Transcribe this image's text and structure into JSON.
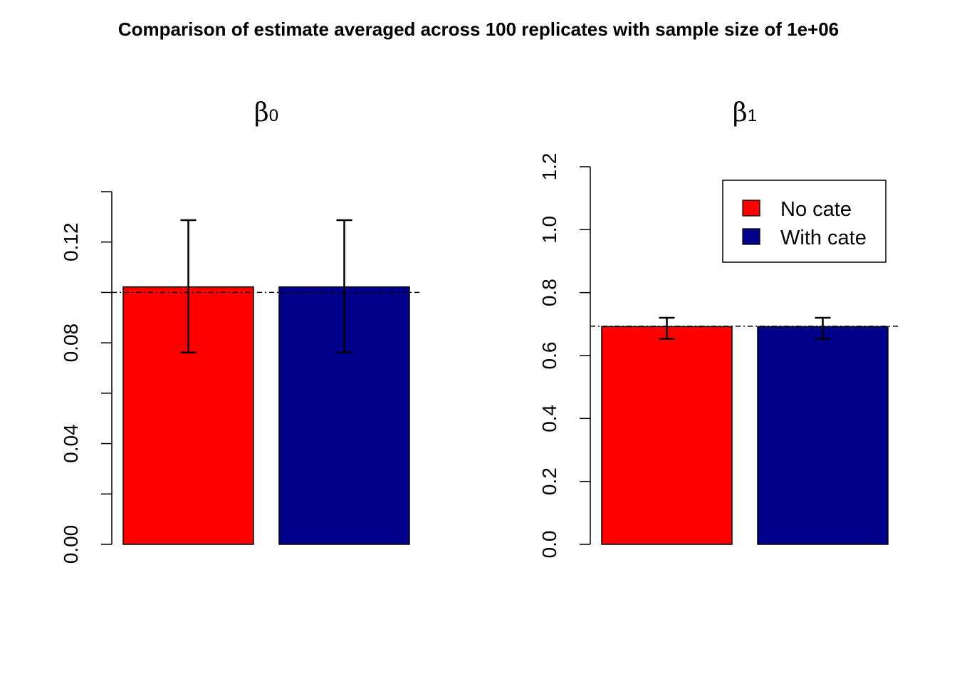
{
  "chart_data": [
    {
      "type": "bar",
      "title": "β",
      "title_subscript": "0",
      "categories": [
        "No cate",
        "With cate"
      ],
      "values": [
        0.1022,
        0.1022
      ],
      "error_low": [
        0.0761,
        0.0761
      ],
      "error_high": [
        0.1287,
        0.1287
      ],
      "reference_line": 0.1,
      "ylim": [
        0,
        0.14
      ],
      "yticks": [
        0.0,
        0.02,
        0.04,
        0.06,
        0.08,
        0.1,
        0.12,
        0.14
      ],
      "ytick_labels": [
        "0.00",
        "",
        "0.04",
        "",
        "0.08",
        "",
        "0.12",
        ""
      ],
      "colors": [
        "#FF0000",
        "#00008B"
      ]
    },
    {
      "type": "bar",
      "title": "β",
      "title_subscript": "1",
      "categories": [
        "No cate",
        "With cate"
      ],
      "values": [
        0.692,
        0.692
      ],
      "error_low": [
        0.653,
        0.653
      ],
      "error_high": [
        0.72,
        0.72
      ],
      "reference_line": 0.693,
      "ylim": [
        0,
        1.2
      ],
      "yticks": [
        0.0,
        0.2,
        0.4,
        0.6,
        0.8,
        1.0,
        1.2
      ],
      "ytick_labels": [
        "0.0",
        "0.2",
        "0.4",
        "0.6",
        "0.8",
        "1.0",
        "1.2"
      ],
      "colors": [
        "#FF0000",
        "#00008B"
      ]
    }
  ],
  "main_title": "Comparison of estimate averaged across 100 replicates with sample size of 1e+06",
  "legend": {
    "placement": "top-right",
    "items": [
      {
        "label": "No cate",
        "color": "#FF0000"
      },
      {
        "label": "With cate",
        "color": "#00008B"
      }
    ]
  }
}
